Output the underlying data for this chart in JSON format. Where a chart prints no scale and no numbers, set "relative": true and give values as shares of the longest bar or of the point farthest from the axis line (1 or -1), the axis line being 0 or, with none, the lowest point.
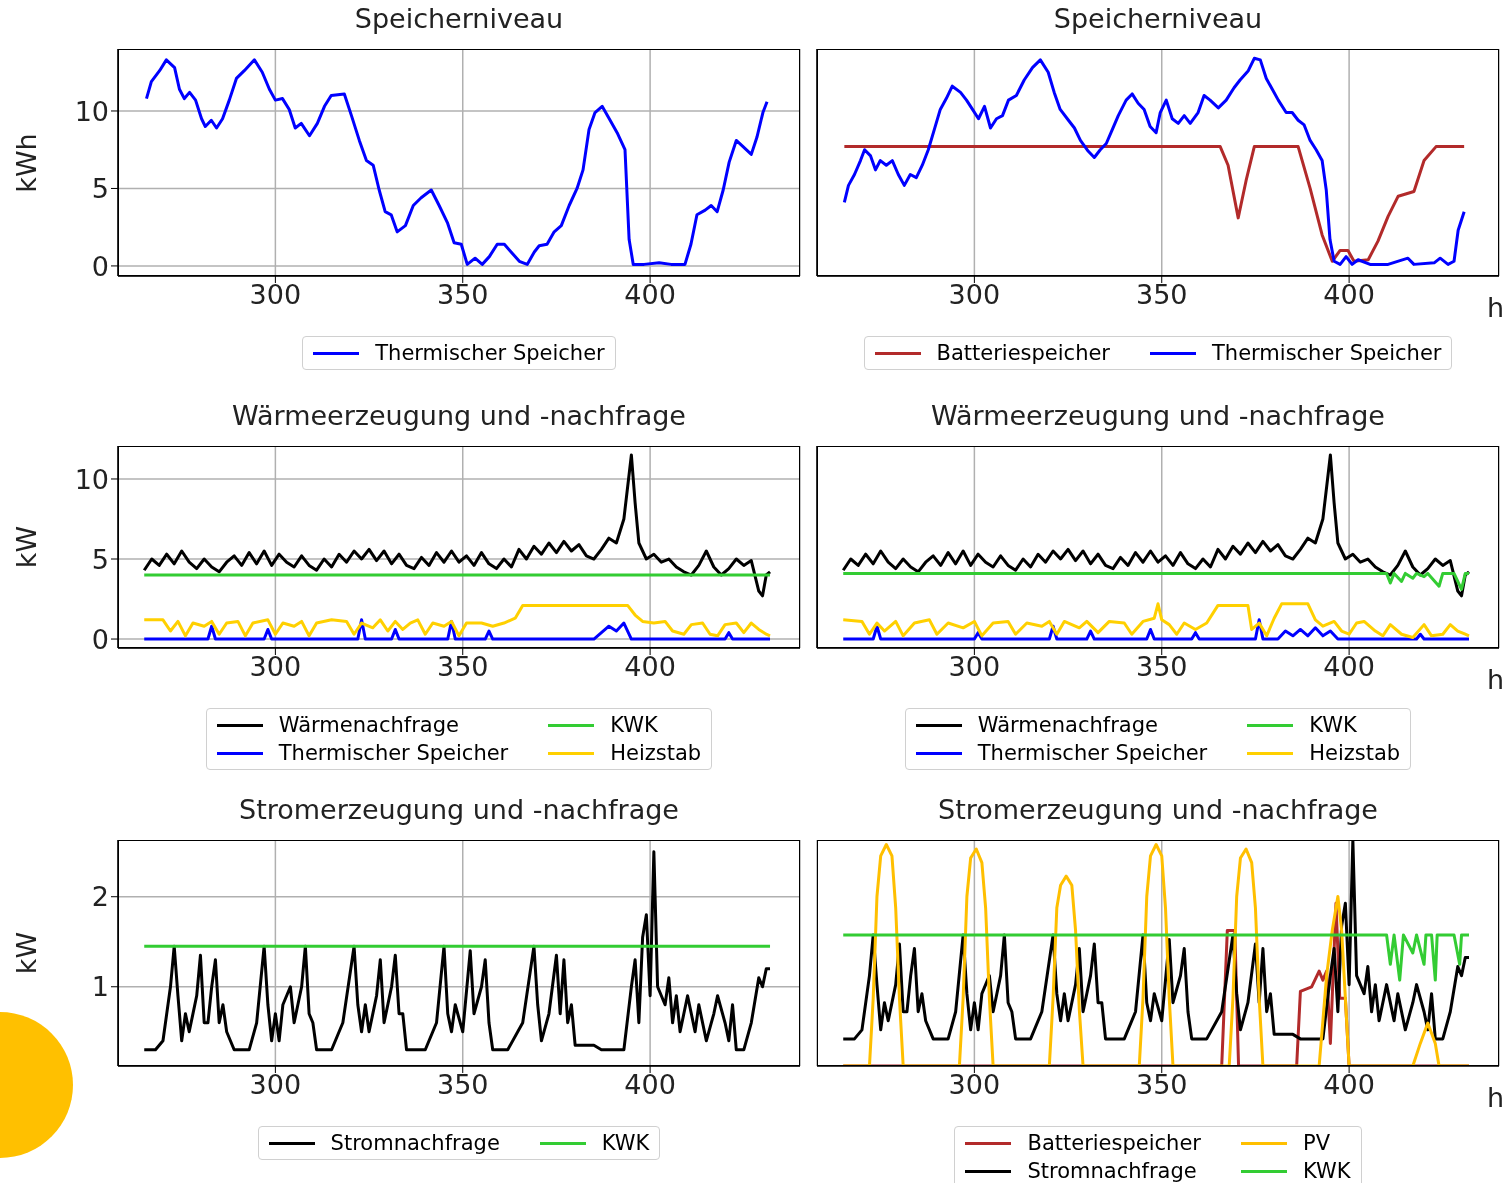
{
  "chart_data": [
    {
      "type": "line",
      "title": "Speicherniveau",
      "ylabel": "kWh",
      "xlim": [
        258,
        440
      ],
      "xticks": [
        300,
        350,
        400
      ],
      "ylim": [
        -0.65,
        14
      ],
      "yticks": [
        0,
        5,
        10
      ],
      "grid": true,
      "legend": "bottom",
      "series": [
        {
          "name": "Thermischer Speicher",
          "color": "#0000ff",
          "x": [
            265.6,
            266.9,
            269.1,
            270.9,
            273.1,
            274.4,
            275.7,
            277.1,
            278.7,
            280.3,
            281.3,
            282.9,
            284.3,
            285.9,
            287.7,
            289.6,
            291.7,
            294.4,
            296.5,
            298.4,
            300,
            301.9,
            303.7,
            305.3,
            306.9,
            309.1,
            311.2,
            313.1,
            314.9,
            318.4,
            320.3,
            322.4,
            324.3,
            326.1,
            327.7,
            329.3,
            330.9,
            332.5,
            334.7,
            336.8,
            338.9,
            341.6,
            343.7,
            345.9,
            347.7,
            349.6,
            351.2,
            353.3,
            355.2,
            357.1,
            359.2,
            361.1,
            362.9,
            365.1,
            367.2,
            369.1,
            370.4,
            372.5,
            374.4,
            376.3,
            378.4,
            380.5,
            382.1,
            383.7,
            385.3,
            387.2,
            389.1,
            391.2,
            393.3,
            394.4,
            395.5,
            398.4,
            402.4,
            405.6,
            409.3,
            410.9,
            412.5,
            414.7,
            416.3,
            417.9,
            419.5,
            421.1,
            423,
            424.8,
            427,
            428.5,
            430.1,
            431.2
          ],
          "values": [
            10.8,
            11.9,
            12.6,
            13.3,
            12.8,
            11.4,
            10.8,
            11.2,
            10.7,
            9.5,
            9.0,
            9.4,
            8.9,
            9.5,
            10.7,
            12.1,
            12.6,
            13.3,
            12.5,
            11.4,
            10.7,
            10.8,
            10.1,
            8.9,
            9.2,
            8.4,
            9.2,
            10.3,
            11.0,
            11.1,
            9.7,
            8.1,
            6.8,
            6.5,
            4.9,
            3.5,
            3.3,
            2.2,
            2.6,
            3.9,
            4.4,
            4.9,
            3.9,
            2.8,
            1.5,
            1.4,
            0.1,
            0.5,
            0.1,
            0.6,
            1.4,
            1.4,
            0.9,
            0.3,
            0.1,
            0.9,
            1.3,
            1.4,
            2.2,
            2.6,
            3.9,
            5.0,
            6.2,
            8.8,
            9.9,
            10.3,
            9.5,
            8.6,
            7.5,
            1.7,
            0.1,
            0.1,
            0.2,
            0.1,
            0.1,
            1.4,
            3.3,
            3.6,
            3.9,
            3.5,
            4.9,
            6.7,
            8.1,
            7.7,
            7.2,
            8.3,
            9.9,
            10.6
          ]
        }
      ]
    },
    {
      "type": "line",
      "title": "Speicherniveau",
      "xlabel": "h",
      "xlim": [
        258,
        440
      ],
      "xticks": [
        300,
        350,
        400
      ],
      "ylim": [
        -0.65,
        14
      ],
      "yticks": [
        0,
        5,
        10
      ],
      "tick_labels": "x",
      "grid": true,
      "legend": "bottom",
      "series": [
        {
          "name": "Batteriespeicher",
          "color": "#b22a2a",
          "x": [
            265.3,
            365.6,
            367.7,
            370.4,
            372.5,
            374.7,
            386.4,
            389.6,
            392.8,
            395.5,
            397.6,
            399.7,
            401.3,
            405.1,
            407.7,
            410.4,
            413.1,
            417.3,
            420,
            423.2,
            430.7
          ],
          "values": [
            7.7,
            7.7,
            6.5,
            3.1,
            5.5,
            7.7,
            7.7,
            5.0,
            2.0,
            0.3,
            1.0,
            1.0,
            0.3,
            0.4,
            1.6,
            3.2,
            4.5,
            4.8,
            6.8,
            7.7,
            7.7
          ]
        },
        {
          "name": "Thermischer Speicher",
          "color": "#0000ff",
          "x": [
            265.3,
            266.4,
            268,
            269.6,
            270.7,
            272.3,
            273.6,
            274.9,
            276.5,
            278.1,
            279.7,
            281.3,
            282.9,
            284.5,
            286.1,
            287.7,
            289.3,
            290.9,
            292.5,
            294.1,
            296.3,
            297.9,
            299.5,
            301.1,
            302.7,
            304.3,
            305.9,
            307.5,
            309.1,
            311.2,
            313.3,
            315.5,
            317.6,
            319.7,
            321.3,
            322.9,
            325.1,
            326.7,
            328.3,
            330.4,
            332,
            333.6,
            335.2,
            336.8,
            338.4,
            340.5,
            342.1,
            343.7,
            345.3,
            346.9,
            348.5,
            349.6,
            351.2,
            352.8,
            354.4,
            356,
            357.6,
            359.7,
            361.3,
            362.9,
            365.1,
            367.2,
            369.3,
            370.9,
            373.1,
            374.7,
            376.3,
            377.9,
            379.5,
            381.1,
            383.2,
            384.8,
            386.4,
            388,
            389.6,
            391.2,
            392.8,
            393.9,
            394.9,
            396,
            397.6,
            399.2,
            400.8,
            402.4,
            405.6,
            410.4,
            415.7,
            417.3,
            422.7,
            424.3,
            426.4,
            428,
            429.1,
            430.7
          ],
          "values": [
            4.1,
            5.2,
            5.9,
            6.8,
            7.5,
            7.1,
            6.2,
            6.8,
            6.5,
            6.8,
            5.9,
            5.2,
            5.9,
            5.7,
            6.5,
            7.5,
            8.8,
            10.1,
            10.8,
            11.6,
            11.2,
            10.7,
            10.1,
            9.5,
            10.3,
            8.9,
            9.5,
            9.7,
            10.7,
            11.0,
            12.0,
            12.8,
            13.3,
            12.5,
            11.2,
            10.1,
            9.4,
            8.9,
            8.1,
            7.4,
            7.0,
            7.5,
            7.9,
            8.8,
            9.7,
            10.7,
            11.1,
            10.5,
            10.1,
            9.0,
            8.6,
            9.9,
            10.7,
            9.5,
            9.2,
            9.7,
            9.2,
            9.9,
            11.0,
            10.7,
            10.2,
            10.7,
            11.5,
            12.0,
            12.6,
            13.4,
            13.3,
            12.1,
            11.4,
            10.7,
            9.9,
            9.9,
            9.4,
            9.1,
            8.1,
            7.5,
            6.8,
            4.9,
            1.7,
            0.3,
            0.1,
            0.6,
            0.1,
            0.4,
            0.1,
            0.1,
            0.5,
            0.1,
            0.2,
            0.5,
            0.1,
            0.3,
            2.3,
            3.5
          ]
        }
      ]
    },
    {
      "type": "line",
      "title": "Wärmeerzeugung und -nachfrage",
      "ylabel": "kW",
      "xlim": [
        258,
        440
      ],
      "xticks": [
        300,
        350,
        400
      ],
      "ylim": [
        -0.56,
        12.06
      ],
      "yticks": [
        0,
        5,
        10
      ],
      "grid": true,
      "legend": "bottom",
      "series": [
        {
          "name": "Wärmenachfrage",
          "color": "#000000",
          "x": [
            265,
            267,
            269,
            271,
            273,
            275,
            277,
            279,
            281,
            283,
            285,
            287,
            289,
            291,
            293,
            295,
            297,
            299,
            301,
            303,
            305,
            307,
            309,
            311,
            313,
            315,
            317,
            319,
            321,
            323,
            325,
            327,
            329,
            331,
            333,
            335,
            337,
            339,
            341,
            343,
            345,
            347,
            349,
            351,
            353,
            355,
            357,
            359,
            361,
            363,
            365,
            367,
            369,
            371,
            373,
            375,
            377,
            379,
            381,
            383,
            385,
            387,
            389,
            391,
            393,
            394,
            395,
            396,
            397,
            399,
            401,
            403,
            405,
            407,
            409,
            411,
            413,
            415,
            417,
            419,
            421,
            423,
            425,
            427,
            429,
            430,
            431,
            432
          ],
          "values": [
            4.3,
            5.0,
            4.6,
            5.3,
            4.7,
            5.5,
            4.8,
            4.4,
            5.0,
            4.5,
            4.2,
            4.8,
            5.2,
            4.6,
            5.4,
            4.7,
            5.5,
            4.6,
            5.3,
            4.8,
            4.5,
            5.2,
            4.6,
            4.3,
            5.0,
            4.5,
            5.3,
            4.8,
            5.5,
            5.0,
            5.6,
            4.9,
            5.5,
            4.7,
            5.3,
            4.6,
            4.4,
            5.1,
            4.6,
            5.4,
            4.8,
            5.5,
            4.8,
            5.2,
            4.6,
            5.4,
            4.7,
            4.4,
            5.0,
            4.5,
            5.6,
            5.0,
            5.8,
            5.3,
            6.0,
            5.4,
            6.1,
            5.5,
            5.9,
            5.2,
            5.0,
            5.6,
            6.3,
            6.0,
            7.5,
            9.5,
            11.5,
            8.5,
            6.0,
            5.0,
            5.3,
            4.8,
            5.0,
            4.5,
            4.2,
            4.0,
            4.6,
            5.5,
            4.5,
            4.0,
            4.4,
            5.0,
            4.6,
            4.9,
            3.0,
            2.7,
            4.0,
            4.2
          ]
        },
        {
          "name": "Thermischer Speicher",
          "color": "#0000ff",
          "x": [
            265,
            282,
            283,
            284,
            297,
            298,
            299,
            322,
            323,
            324,
            331,
            332,
            333,
            346,
            347,
            348,
            356,
            357,
            358,
            385,
            387,
            389,
            391,
            393,
            395,
            420,
            421,
            422,
            432
          ],
          "values": [
            0,
            0,
            0.8,
            0,
            0,
            0.6,
            0,
            0,
            1.2,
            0,
            0,
            0.6,
            0,
            0,
            1.1,
            0,
            0,
            0.5,
            0,
            0,
            0.4,
            0.8,
            0.5,
            1.0,
            0,
            0,
            0.4,
            0,
            0
          ]
        },
        {
          "name": "KWK",
          "color": "#33cc33",
          "x": [
            265,
            432
          ],
          "values": [
            4.0,
            4.0
          ]
        },
        {
          "name": "Heizstab",
          "color": "#ffd000",
          "x": [
            265,
            270,
            272,
            274,
            276,
            278,
            281,
            283,
            285,
            287,
            290,
            292,
            294,
            298,
            300,
            302,
            305,
            307,
            309,
            311,
            315,
            319,
            321,
            323,
            326,
            328,
            330,
            332,
            334,
            336,
            338,
            340,
            342,
            345,
            347,
            349,
            351,
            355,
            358,
            361,
            364,
            366,
            394,
            396,
            398,
            401,
            404,
            406,
            409,
            411,
            414,
            416,
            418,
            420,
            423,
            425,
            427,
            429,
            431,
            432
          ],
          "values": [
            1.2,
            1.2,
            0.5,
            1.1,
            0.2,
            1.0,
            0.8,
            1.1,
            0.3,
            1.0,
            1.1,
            0.2,
            1.0,
            1.2,
            0.3,
            1.0,
            0.8,
            1.1,
            0.2,
            1.0,
            1.2,
            1.1,
            0.3,
            1.0,
            0.7,
            1.2,
            0.5,
            1.1,
            0.6,
            1.0,
            1.2,
            0.3,
            1.0,
            0.8,
            1.1,
            0.2,
            1.0,
            1.0,
            0.8,
            1.0,
            1.3,
            2.1,
            2.1,
            1.5,
            1.1,
            1.0,
            1.1,
            0.5,
            0.3,
            0.9,
            1.0,
            0.3,
            0.2,
            0.9,
            1.0,
            0.4,
            1.0,
            0.6,
            0.3,
            0.2
          ]
        }
      ]
    },
    {
      "type": "line",
      "title": "Wärmeerzeugung und -nachfrage",
      "xlabel": "h",
      "xlim": [
        258,
        440
      ],
      "xticks": [
        300,
        350,
        400
      ],
      "ylim": [
        -0.56,
        12.06
      ],
      "yticks": [
        0,
        5,
        10
      ],
      "tick_labels": "x",
      "grid": true,
      "legend": "bottom",
      "series": [
        {
          "name": "Wärmenachfrage",
          "color": "#000000",
          "x": [
            265,
            267,
            269,
            271,
            273,
            275,
            277,
            279,
            281,
            283,
            285,
            287,
            289,
            291,
            293,
            295,
            297,
            299,
            301,
            303,
            305,
            307,
            309,
            311,
            313,
            315,
            317,
            319,
            321,
            323,
            325,
            327,
            329,
            331,
            333,
            335,
            337,
            339,
            341,
            343,
            345,
            347,
            349,
            351,
            353,
            355,
            357,
            359,
            361,
            363,
            365,
            367,
            369,
            371,
            373,
            375,
            377,
            379,
            381,
            383,
            385,
            387,
            389,
            391,
            393,
            394,
            395,
            396,
            397,
            399,
            401,
            403,
            405,
            407,
            409,
            411,
            413,
            415,
            417,
            419,
            421,
            423,
            425,
            427,
            429,
            430,
            431,
            432
          ],
          "values": [
            4.3,
            5.0,
            4.6,
            5.3,
            4.7,
            5.5,
            4.8,
            4.4,
            5.0,
            4.5,
            4.2,
            4.8,
            5.2,
            4.6,
            5.4,
            4.7,
            5.5,
            4.6,
            5.3,
            4.8,
            4.5,
            5.2,
            4.6,
            4.3,
            5.0,
            4.5,
            5.3,
            4.8,
            5.5,
            5.0,
            5.6,
            4.9,
            5.5,
            4.7,
            5.3,
            4.6,
            4.4,
            5.1,
            4.6,
            5.4,
            4.8,
            5.5,
            4.8,
            5.2,
            4.6,
            5.4,
            4.7,
            4.4,
            5.0,
            4.5,
            5.6,
            5.0,
            5.8,
            5.3,
            6.0,
            5.4,
            6.1,
            5.5,
            5.9,
            5.2,
            5.0,
            5.6,
            6.3,
            6.0,
            7.5,
            9.5,
            11.5,
            8.5,
            6.0,
            5.0,
            5.3,
            4.8,
            5.0,
            4.5,
            4.2,
            4.0,
            4.6,
            5.5,
            4.5,
            4.0,
            4.4,
            5.0,
            4.6,
            4.9,
            3.0,
            2.7,
            4.0,
            4.2
          ]
        },
        {
          "name": "Thermischer Speicher",
          "color": "#0000ff",
          "x": [
            265,
            273,
            274,
            275,
            300,
            301,
            302,
            320,
            321,
            322,
            330,
            331,
            332,
            346,
            347,
            348,
            358,
            359,
            360,
            375,
            376,
            377,
            381,
            383,
            385,
            387,
            389,
            391,
            393,
            395,
            397,
            418,
            419,
            420,
            432
          ],
          "values": [
            0,
            0,
            0.8,
            0,
            0,
            0.4,
            0,
            0,
            0.8,
            0,
            0,
            0.5,
            0,
            0,
            0.6,
            0,
            0,
            0.4,
            0,
            0,
            1.2,
            0,
            0,
            0.5,
            0.2,
            0.6,
            0.2,
            0.7,
            0.2,
            0.5,
            0,
            0,
            0.3,
            0,
            0
          ]
        },
        {
          "name": "KWK",
          "color": "#33cc33",
          "x": [
            265,
            410,
            411,
            412,
            414,
            415,
            417,
            418,
            420,
            421,
            424,
            425,
            428,
            430,
            431,
            432
          ],
          "values": [
            4.1,
            4.1,
            3.5,
            4.1,
            3.6,
            4.1,
            3.8,
            4.1,
            3.9,
            4.1,
            3.3,
            4.1,
            4.1,
            3.1,
            4.1,
            4.1
          ]
        },
        {
          "name": "Heizstab",
          "color": "#ffd000",
          "x": [
            265,
            270,
            272,
            274,
            276,
            279,
            281,
            284,
            288,
            290,
            293,
            297,
            300,
            302,
            305,
            309,
            311,
            314,
            318,
            320,
            322,
            324,
            328,
            330,
            333,
            336,
            340,
            342,
            345,
            348,
            349,
            350,
            352,
            354,
            356,
            359,
            362,
            365,
            373,
            374,
            376,
            378,
            380,
            382,
            389,
            391,
            393,
            396,
            398,
            400,
            402,
            404,
            407,
            409,
            411,
            414,
            417,
            420,
            422,
            425,
            427,
            429,
            431,
            432
          ],
          "values": [
            1.2,
            1.1,
            0.3,
            1.0,
            0.5,
            1.1,
            0.2,
            1.0,
            1.2,
            0.3,
            1.0,
            0.7,
            1.1,
            0.2,
            1.0,
            1.1,
            0.3,
            1.0,
            0.8,
            1.1,
            0.3,
            1.1,
            0.7,
            1.1,
            0.4,
            1.1,
            1.0,
            0.3,
            1.1,
            1.3,
            2.2,
            1.2,
            0.9,
            0.3,
            1.0,
            0.6,
            1.0,
            2.1,
            2.1,
            0.6,
            1.0,
            0.2,
            1.3,
            2.2,
            2.2,
            1.2,
            0.8,
            1.1,
            0.5,
            0.3,
            1.0,
            1.1,
            0.5,
            0.2,
            0.9,
            0.3,
            0.1,
            0.9,
            0.2,
            0.3,
            0.9,
            0.5,
            0.3,
            0.2
          ]
        }
      ]
    },
    {
      "type": "line",
      "title": "Stromerzeugung und -nachfrage",
      "ylabel": "kW",
      "xlim": [
        258,
        440
      ],
      "xticks": [
        300,
        350,
        400
      ],
      "ylim": [
        0.12,
        2.63
      ],
      "yticks": [
        1,
        2
      ],
      "grid": true,
      "legend": "bottom",
      "series": [
        {
          "name": "Stromnachfrage",
          "color": "#000000",
          "x": [
            265,
            268,
            270,
            272,
            273,
            274,
            275,
            276,
            277,
            279,
            280,
            281,
            282,
            283,
            284,
            285,
            286,
            287,
            289,
            293,
            295,
            297,
            298,
            299,
            300,
            301,
            302,
            304,
            305,
            306,
            307,
            308,
            309,
            310,
            311,
            315,
            318,
            321,
            322,
            323,
            324,
            325,
            327,
            328,
            329,
            330,
            331,
            332,
            333,
            334,
            335,
            340,
            343,
            345,
            346,
            347,
            348,
            350,
            352,
            353,
            355,
            356,
            357,
            358,
            362,
            366,
            369,
            370,
            371,
            373,
            375,
            376,
            377,
            378,
            379,
            380,
            385,
            387,
            393,
            395,
            396,
            397,
            398,
            399,
            400,
            401,
            402,
            404,
            405,
            406,
            407,
            408,
            409,
            410,
            412,
            413,
            415,
            417,
            418,
            420,
            421,
            422,
            423,
            425,
            427,
            429,
            430,
            431,
            432
          ],
          "values": [
            0.3,
            0.3,
            0.4,
            1.0,
            1.45,
            0.9,
            0.4,
            0.7,
            0.5,
            0.9,
            1.35,
            0.6,
            0.6,
            1.0,
            1.3,
            0.6,
            0.8,
            0.5,
            0.3,
            0.3,
            0.6,
            1.45,
            0.8,
            0.4,
            0.7,
            0.4,
            0.8,
            1.0,
            0.6,
            0.8,
            1.0,
            1.45,
            0.7,
            0.6,
            0.3,
            0.3,
            0.6,
            1.45,
            0.8,
            0.5,
            0.8,
            0.5,
            0.9,
            1.3,
            0.6,
            0.8,
            1.0,
            1.35,
            0.7,
            0.7,
            0.3,
            0.3,
            0.6,
            1.45,
            0.7,
            0.5,
            0.8,
            0.5,
            1.4,
            0.7,
            1.0,
            1.3,
            0.6,
            0.3,
            0.3,
            0.6,
            1.45,
            0.8,
            0.4,
            0.7,
            1.35,
            0.7,
            1.3,
            0.6,
            0.8,
            0.35,
            0.35,
            0.3,
            0.3,
            1.0,
            1.3,
            0.6,
            1.55,
            1.8,
            0.9,
            2.5,
            1.0,
            0.8,
            1.1,
            0.6,
            0.9,
            0.5,
            0.7,
            0.9,
            0.5,
            0.8,
            0.4,
            0.7,
            0.9,
            0.6,
            0.4,
            0.8,
            0.3,
            0.3,
            0.6,
            1.1,
            1.0,
            1.2,
            1.2
          ]
        },
        {
          "name": "KWK",
          "color": "#33cc33",
          "x": [
            265,
            432
          ],
          "values": [
            1.45,
            1.45
          ]
        }
      ]
    },
    {
      "type": "line",
      "title": "Stromerzeugung und -nachfrage",
      "xlabel": "h",
      "xlim": [
        258,
        440
      ],
      "xticks": [
        300,
        350,
        400
      ],
      "relative": true,
      "tick_labels": "x",
      "grid": "x",
      "legend": "bottom",
      "series": [
        {
          "name": "Batteriespeicher",
          "color": "#b22a2a",
          "x": [
            265,
            366,
            367.5,
            369.5,
            370.5,
            386,
            387,
            390,
            392,
            393,
            394,
            395,
            396.5,
            397.5,
            399,
            400,
            432
          ],
          "values": [
            0,
            0,
            0.6,
            0.6,
            0,
            0,
            0.33,
            0.35,
            0.42,
            0.38,
            0.42,
            0.1,
            0.72,
            0.3,
            0.3,
            0,
            0
          ]
        },
        {
          "name": "Stromnachfrage",
          "color": "#000000",
          "x": [
            265,
            268,
            270,
            272,
            273,
            274,
            275,
            276,
            277,
            279,
            280,
            281,
            282,
            283,
            284,
            285,
            286,
            287,
            289,
            293,
            295,
            297,
            298,
            299,
            300,
            301,
            302,
            304,
            305,
            306,
            307,
            308,
            309,
            310,
            311,
            315,
            318,
            321,
            322,
            323,
            324,
            325,
            327,
            328,
            329,
            330,
            331,
            332,
            333,
            334,
            335,
            340,
            343,
            345,
            346,
            347,
            348,
            350,
            352,
            353,
            355,
            356,
            357,
            358,
            362,
            366,
            369,
            370,
            371,
            373,
            375,
            376,
            377,
            378,
            379,
            380,
            385,
            387,
            393,
            395,
            396,
            397,
            398,
            399,
            400,
            401,
            402,
            404,
            405,
            406,
            407,
            408,
            409,
            410,
            412,
            413,
            415,
            417,
            418,
            420,
            421,
            422,
            423,
            425,
            427,
            429,
            430,
            431,
            432
          ],
          "values": [
            0.12,
            0.12,
            0.16,
            0.4,
            0.58,
            0.36,
            0.16,
            0.28,
            0.2,
            0.36,
            0.54,
            0.24,
            0.24,
            0.4,
            0.52,
            0.24,
            0.32,
            0.2,
            0.12,
            0.12,
            0.24,
            0.58,
            0.32,
            0.16,
            0.28,
            0.16,
            0.32,
            0.4,
            0.24,
            0.32,
            0.4,
            0.58,
            0.28,
            0.24,
            0.12,
            0.12,
            0.24,
            0.58,
            0.32,
            0.2,
            0.32,
            0.2,
            0.36,
            0.52,
            0.24,
            0.32,
            0.4,
            0.54,
            0.28,
            0.28,
            0.12,
            0.12,
            0.24,
            0.58,
            0.28,
            0.2,
            0.32,
            0.2,
            0.56,
            0.28,
            0.4,
            0.52,
            0.24,
            0.12,
            0.12,
            0.24,
            0.58,
            0.32,
            0.16,
            0.28,
            0.54,
            0.28,
            0.52,
            0.24,
            0.32,
            0.14,
            0.14,
            0.12,
            0.12,
            0.4,
            0.52,
            0.24,
            0.62,
            0.72,
            0.36,
            1.0,
            0.4,
            0.32,
            0.44,
            0.24,
            0.36,
            0.2,
            0.28,
            0.36,
            0.2,
            0.32,
            0.16,
            0.28,
            0.36,
            0.24,
            0.16,
            0.32,
            0.12,
            0.12,
            0.24,
            0.44,
            0.4,
            0.48,
            0.48
          ]
        },
        {
          "name": "PV",
          "color": "#ffbf00",
          "x": [
            265,
            272,
            273,
            274,
            275,
            276.5,
            278,
            279,
            280,
            281,
            296,
            297,
            298,
            299,
            300.5,
            302,
            303,
            304,
            305,
            320,
            321,
            322,
            323,
            324.5,
            326,
            327,
            328,
            329,
            344,
            345,
            346,
            347,
            348.5,
            350,
            351,
            352,
            353,
            368,
            369,
            370,
            371,
            372.5,
            374,
            375,
            376,
            377,
            392,
            393,
            394,
            395.5,
            397,
            398,
            399,
            400,
            417,
            419,
            421,
            423,
            424,
            432
          ],
          "values": [
            0,
            0,
            0.3,
            0.75,
            0.93,
            0.98,
            0.93,
            0.7,
            0.3,
            0,
            0,
            0.3,
            0.75,
            0.92,
            0.96,
            0.9,
            0.7,
            0.3,
            0,
            0,
            0.3,
            0.7,
            0.8,
            0.84,
            0.8,
            0.6,
            0.25,
            0,
            0,
            0.3,
            0.75,
            0.93,
            0.98,
            0.93,
            0.7,
            0.3,
            0,
            0,
            0.3,
            0.75,
            0.92,
            0.96,
            0.9,
            0.7,
            0.3,
            0,
            0,
            0.2,
            0.4,
            0.6,
            0.75,
            0.6,
            0.3,
            0,
            0,
            0.1,
            0.19,
            0.1,
            0,
            0
          ]
        },
        {
          "name": "KWK",
          "color": "#33cc33",
          "x": [
            265,
            410,
            411,
            412,
            413.5,
            414.5,
            417,
            418,
            420,
            420.5,
            422,
            423,
            423.5,
            428,
            429.5,
            430,
            432
          ],
          "values": [
            0.58,
            0.58,
            0.45,
            0.58,
            0.38,
            0.58,
            0.5,
            0.58,
            0.45,
            0.58,
            0.58,
            0.38,
            0.58,
            0.58,
            0.45,
            0.58,
            0.58
          ]
        }
      ]
    }
  ]
}
